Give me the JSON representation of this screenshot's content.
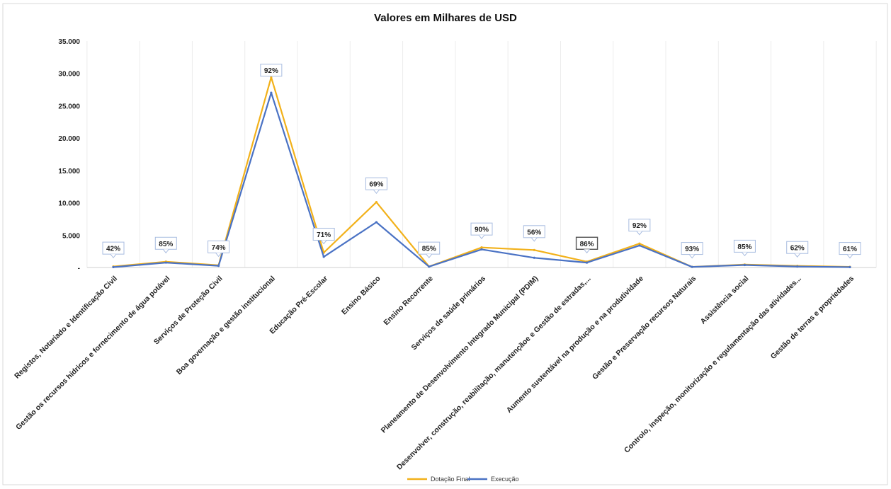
{
  "chart_data": {
    "type": "line",
    "title": "Valores em Milhares de USD",
    "xlabel": "",
    "ylabel": "",
    "ylim": [
      0,
      35000
    ],
    "yticks": [
      {
        "value": 0,
        "label": "-"
      },
      {
        "value": 5000,
        "label": "5.000"
      },
      {
        "value": 10000,
        "label": "10.000"
      },
      {
        "value": 15000,
        "label": "15.000"
      },
      {
        "value": 20000,
        "label": "20.000"
      },
      {
        "value": 25000,
        "label": "25.000"
      },
      {
        "value": 30000,
        "label": "30.000"
      },
      {
        "value": 35000,
        "label": "35.000"
      }
    ],
    "grid": "vertical",
    "legend_position": "bottom",
    "categories": [
      "Registos, Notariado e Identificação Civil",
      "Gestão os recursos hídricos e fornecimento de água potável",
      "Serviços de Proteção Civil",
      "Boa governação e gestão institucional",
      "Educação Pré-Escolar",
      "Ensino Básico",
      "Ensino Recorrente",
      "Serviços de saúde primários",
      "Planeamento de Desenvolvimento Integrado Municipal (PDIM)",
      "Desenvolver, construção, reabilitação, manutençãoe e Gestão de estradas,...",
      "Aumento sustentável  na produção e na produtividade",
      "Gestão e Preservação recursos Naturais",
      "Assistência social",
      "Controlo, inspeção, monitorização e regulamentação das atividades...",
      "Gestão de terras e propriedades"
    ],
    "series": [
      {
        "name": "Dotação Final",
        "color": "#F2B11A",
        "values": [
          150,
          900,
          350,
          29400,
          2300,
          10100,
          150,
          3100,
          2700,
          900,
          3700,
          100,
          450,
          250,
          100
        ]
      },
      {
        "name": "Execução",
        "color": "#4A72C4",
        "values": [
          60,
          760,
          260,
          27000,
          1650,
          7000,
          130,
          2800,
          1500,
          750,
          3400,
          90,
          380,
          155,
          60
        ]
      }
    ],
    "data_labels": [
      "42%",
      "85%",
      "74%",
      "92%",
      "71%",
      "69%",
      "85%",
      "90%",
      "56%",
      "86%",
      "92%",
      "93%",
      "85%",
      "62%",
      "61%"
    ]
  }
}
